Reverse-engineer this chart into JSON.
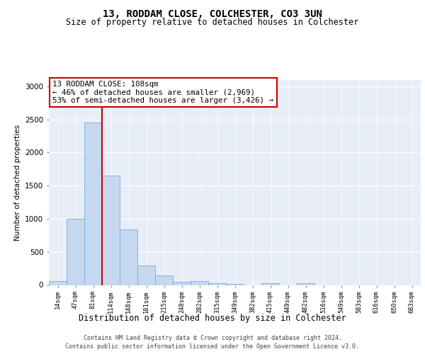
{
  "title1": "13, RODDAM CLOSE, COLCHESTER, CO3 3UN",
  "title2": "Size of property relative to detached houses in Colchester",
  "xlabel": "Distribution of detached houses by size in Colchester",
  "ylabel": "Number of detached properties",
  "bin_labels": [
    "14sqm",
    "47sqm",
    "81sqm",
    "114sqm",
    "148sqm",
    "181sqm",
    "215sqm",
    "248sqm",
    "282sqm",
    "315sqm",
    "349sqm",
    "382sqm",
    "415sqm",
    "449sqm",
    "482sqm",
    "516sqm",
    "549sqm",
    "583sqm",
    "616sqm",
    "650sqm",
    "683sqm"
  ],
  "bar_heights": [
    60,
    1000,
    2450,
    1650,
    840,
    295,
    140,
    50,
    55,
    30,
    20,
    0,
    30,
    0,
    25,
    0,
    0,
    0,
    0,
    0,
    0
  ],
  "bar_color": "#c5d8f0",
  "bar_edge_color": "#7aabda",
  "property_line_x": 2.5,
  "annotation_text": "13 RODDAM CLOSE: 108sqm\n← 46% of detached houses are smaller (2,969)\n53% of semi-detached houses are larger (3,426) →",
  "annotation_box_color": "#ffffff",
  "annotation_box_edge": "#cc0000",
  "property_line_color": "#cc0000",
  "ylim": [
    0,
    3100
  ],
  "yticks": [
    0,
    500,
    1000,
    1500,
    2000,
    2500,
    3000
  ],
  "bg_color": "#e8eef8",
  "grid_color": "#ffffff",
  "footer_line1": "Contains HM Land Registry data © Crown copyright and database right 2024.",
  "footer_line2": "Contains public sector information licensed under the Open Government Licence v3.0."
}
